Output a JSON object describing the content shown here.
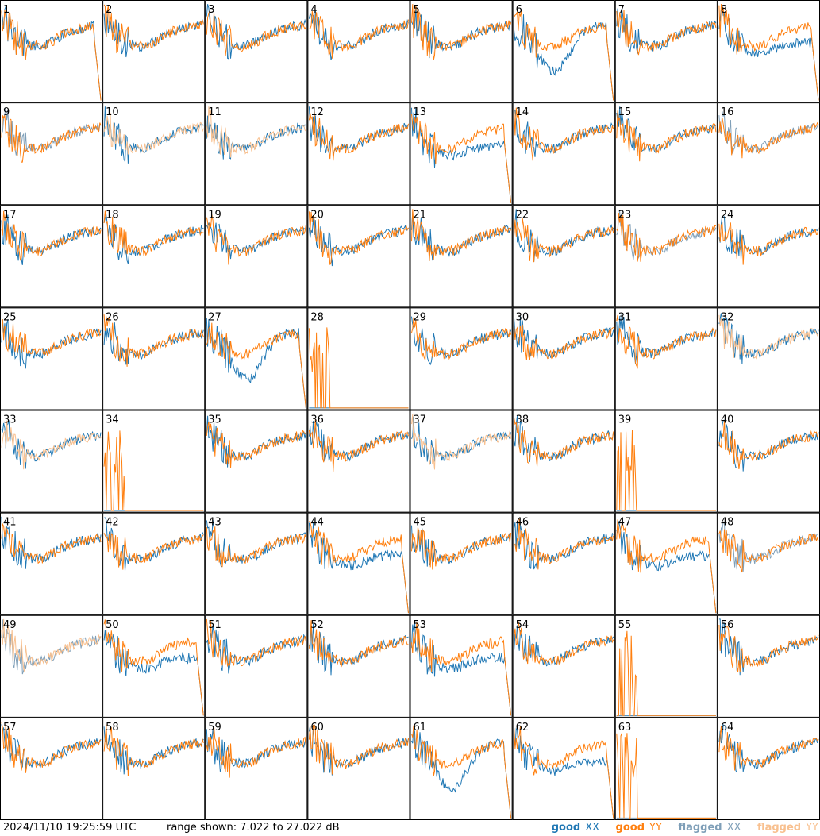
{
  "chart_data": {
    "type": "line",
    "panels": [
      "1",
      "2",
      "3",
      "4",
      "5",
      "6",
      "7",
      "8",
      "9",
      "10",
      "11",
      "12",
      "13",
      "14",
      "15",
      "16",
      "17",
      "18",
      "19",
      "20",
      "21",
      "22",
      "23",
      "24",
      "25",
      "26",
      "27",
      "28",
      "29",
      "30",
      "31",
      "32",
      "33",
      "34",
      "35",
      "36",
      "37",
      "38",
      "39",
      "40",
      "41",
      "42",
      "43",
      "44",
      "45",
      "46",
      "47",
      "48",
      "49",
      "50",
      "51",
      "52",
      "53",
      "54",
      "55",
      "56",
      "57",
      "58",
      "59",
      "60",
      "61",
      "62",
      "63",
      "64"
    ],
    "series_names": [
      "good",
      "good",
      "flagged",
      "flagged"
    ],
    "series_symbols": [
      "XX",
      "YY",
      "XX",
      "YY"
    ],
    "series_colors": [
      "#1f77b4",
      "#ff7f0e",
      "#7f9fb8",
      "#f8c08f"
    ],
    "flagged_panels": {
      "XX": [
        "9",
        "16",
        "23",
        "48",
        "49",
        "63"
      ],
      "YY": [
        "10",
        "11",
        "32",
        "33",
        "37",
        "49"
      ]
    },
    "ylim": [
      7.022,
      27.022
    ],
    "yunits": "dB",
    "profiles": {
      "1": "early",
      "6": "deep",
      "8": "sag",
      "13": "sag",
      "27": "deep",
      "28": "spiky",
      "34": "spiky",
      "39": "spiky",
      "44": "sag",
      "47": "sag",
      "50": "sag",
      "53": "sag",
      "55": "spiky",
      "61": "deep",
      "62": "sag",
      "63": "spiky"
    }
  },
  "footer": {
    "timestamp": "2024/11/10 19:25:59 UTC",
    "range_text": "range shown: 7.022 to 27.022 dB"
  },
  "legend": {
    "good_xx_word": "good",
    "good_xx_sym": "XX",
    "good_yy_word": "good",
    "good_yy_sym": "YY",
    "flag_xx_word": "flagged",
    "flag_xx_sym": "XX",
    "flag_yy_word": "flagged",
    "flag_yy_sym": "YY",
    "colors": {
      "good_xx": "#1f77b4",
      "good_yy": "#ff7f0e",
      "flag_xx": "#7f9fb8",
      "flag_yy": "#f8c08f"
    }
  }
}
